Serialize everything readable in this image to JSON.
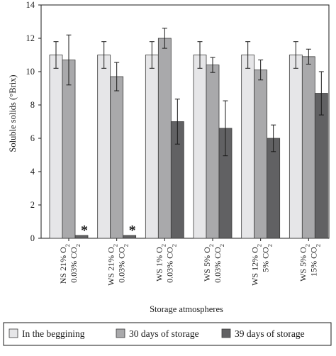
{
  "chart_data": {
    "type": "bar",
    "xlabel": "Storage atmospheres",
    "ylabel": "Soluble solids (°Brix)",
    "ylim": [
      0,
      14
    ],
    "yticks": [
      0,
      2,
      4,
      6,
      8,
      10,
      12,
      14
    ],
    "grid": false,
    "legend_position": "bottom",
    "categories": [
      {
        "line1": "NS 21% O",
        "sub1": "2",
        "line2": "0.03% CO",
        "sub2": "2"
      },
      {
        "line1": "WS 21% O",
        "sub1": "2",
        "line2": "0.03% CO",
        "sub2": "2"
      },
      {
        "line1": "WS 1% O",
        "sub1": "2",
        "line2": "0.03% CO",
        "sub2": "2"
      },
      {
        "line1": "WS 5% O",
        "sub1": "2",
        "line2": "0.03% CO",
        "sub2": "2"
      },
      {
        "line1": "WS 12% O",
        "sub1": "2",
        "line2": "5% CO",
        "sub2": "2"
      },
      {
        "line1": "WS 5% O",
        "sub1": "2",
        "line2": "15% CO",
        "sub2": "2"
      }
    ],
    "series": [
      {
        "name": "In the beggining",
        "color": "#e6e6e8",
        "values": [
          11.0,
          11.0,
          11.0,
          11.0,
          11.0,
          11.0
        ],
        "errors": [
          0.8,
          0.8,
          0.8,
          0.8,
          0.8,
          0.8
        ]
      },
      {
        "name": "30 days of storage",
        "color": "#a9a9ab",
        "values": [
          10.7,
          9.7,
          12.0,
          10.4,
          10.1,
          10.9
        ],
        "errors": [
          1.5,
          0.85,
          0.6,
          0.45,
          0.6,
          0.45
        ]
      },
      {
        "name": "39 days of storage",
        "color": "#616163",
        "values": [
          0.0,
          0.0,
          7.0,
          6.6,
          6.0,
          8.7
        ],
        "errors": [
          0,
          0,
          1.35,
          1.65,
          0.8,
          1.3
        ]
      }
    ],
    "annotations": [
      {
        "category_index": 0,
        "series_index": 2,
        "text": "*"
      },
      {
        "category_index": 1,
        "series_index": 2,
        "text": "*"
      }
    ]
  }
}
